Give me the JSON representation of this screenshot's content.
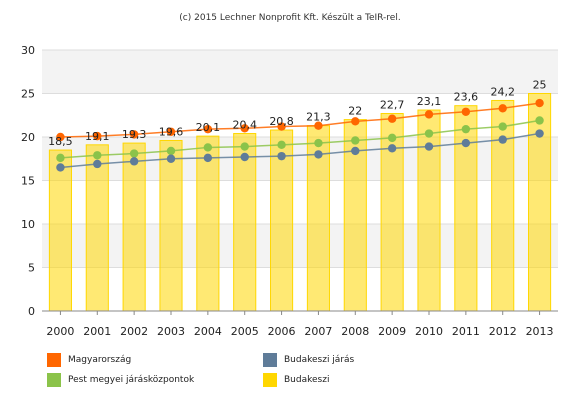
{
  "credit": "(c) 2015 Lechner Nonprofit Kft. Készült a TeIR-rel.",
  "chart_data": {
    "type": "bar",
    "categories": [
      "2000",
      "2001",
      "2002",
      "2003",
      "2004",
      "2005",
      "2006",
      "2007",
      "2008",
      "2009",
      "2010",
      "2011",
      "2012",
      "2013"
    ],
    "ylim": [
      0,
      30
    ],
    "yticks": [
      0,
      5,
      10,
      15,
      20,
      25,
      30
    ],
    "grid": true,
    "bar_series": {
      "name": "Budakeszi",
      "color": "#ffd700",
      "values": [
        18.5,
        19.1,
        19.3,
        19.6,
        20.1,
        20.4,
        20.8,
        21.3,
        22,
        22.7,
        23.1,
        23.6,
        24.2,
        25
      ],
      "labels": [
        "18,5",
        "19,1",
        "19,3",
        "19,6",
        "20,1",
        "20,4",
        "20,8",
        "21,3",
        "22",
        "22,7",
        "23,1",
        "23,6",
        "24,2",
        "25"
      ]
    },
    "line_series": [
      {
        "name": "Magyarország",
        "color": "#ff6600",
        "values": [
          20.0,
          20.1,
          20.3,
          20.6,
          20.9,
          21.0,
          21.2,
          21.3,
          21.8,
          22.1,
          22.6,
          22.9,
          23.3,
          23.9
        ]
      },
      {
        "name": "Pest megyei járásközpontok",
        "color": "#8bc34a",
        "values": [
          17.6,
          17.9,
          18.1,
          18.4,
          18.8,
          18.9,
          19.1,
          19.3,
          19.6,
          19.9,
          20.4,
          20.9,
          21.2,
          21.9
        ]
      },
      {
        "name": "Budakeszi járás",
        "color": "#5f7c99",
        "values": [
          16.5,
          16.9,
          17.2,
          17.5,
          17.6,
          17.7,
          17.8,
          18.0,
          18.4,
          18.7,
          18.9,
          19.3,
          19.7,
          20.4
        ]
      }
    ]
  },
  "legend": [
    {
      "label": "Magyarország",
      "color": "#ff6600"
    },
    {
      "label": "Budakeszi járás",
      "color": "#5f7c99"
    },
    {
      "label": "Pest megyei járásközpontok",
      "color": "#8bc34a"
    },
    {
      "label": "Budakeszi",
      "color": "#ffd700"
    }
  ]
}
